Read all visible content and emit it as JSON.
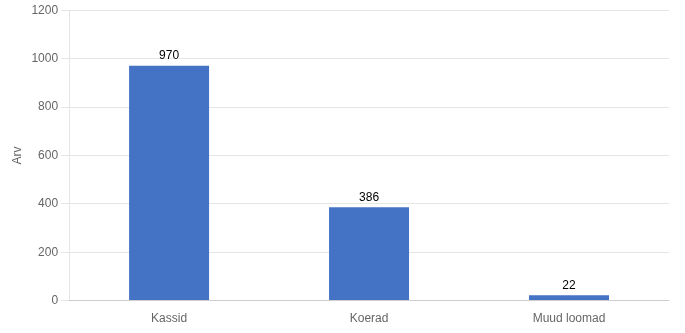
{
  "chart_data": {
    "type": "bar",
    "categories": [
      "Kassid",
      "Koerad",
      "Muud loomad"
    ],
    "values": [
      970,
      386,
      22
    ],
    "color": "#4472C4",
    "ylabel": "Arv",
    "ylim": [
      0,
      1200
    ],
    "yticks": [
      0,
      200,
      400,
      600,
      800,
      1000,
      1200
    ],
    "grid": true,
    "data_labels": true
  }
}
